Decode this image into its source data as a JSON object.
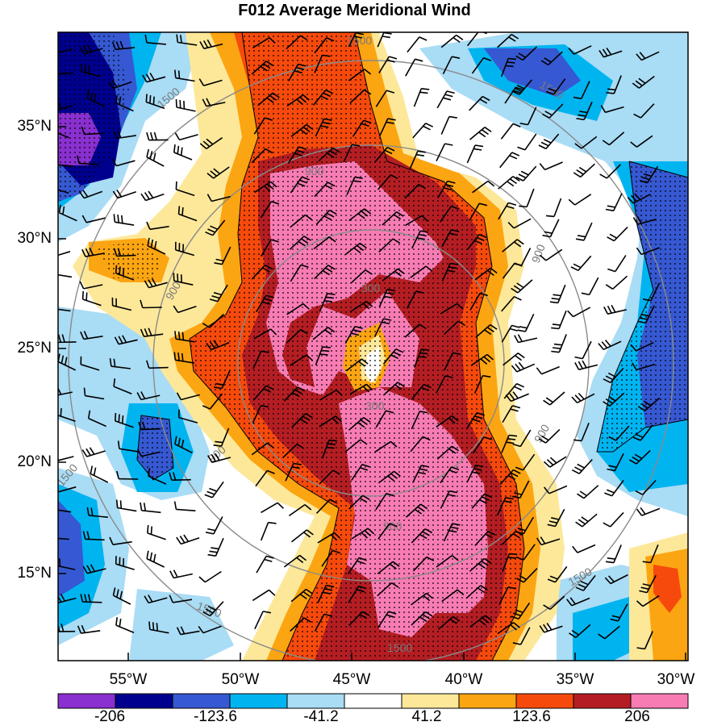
{
  "title": "F012 Average Meridional Wind",
  "lat_labels": [
    "35°N",
    "30°N",
    "25°N",
    "20°N",
    "15°N"
  ],
  "lon_labels": [
    "55°W",
    "50°W",
    "45°W",
    "40°W",
    "35°W",
    "30°W"
  ],
  "colorbar": {
    "labels": [
      "-206",
      "-123.6",
      "-41.2",
      "41.2",
      "123.6",
      "206"
    ],
    "colors": [
      "#8a2fd0",
      "#00008f",
      "#3658d2",
      "#00b4f0",
      "#a9dcf5",
      "#ffffff",
      "#fde89a",
      "#fca512",
      "#f64a0c",
      "#b41e23",
      "#f87cb4"
    ]
  },
  "range_rings": [
    "300",
    "900",
    "1500"
  ]
}
